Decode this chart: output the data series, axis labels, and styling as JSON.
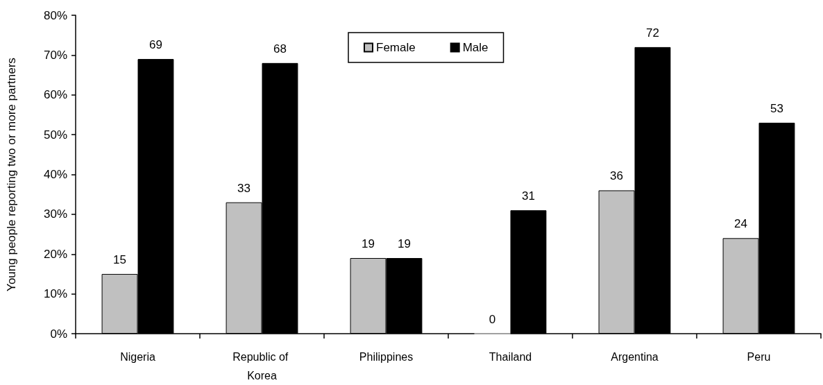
{
  "chart_data": {
    "type": "bar",
    "ylabel": "Young people reporting two or more partners",
    "categories": [
      "Nigeria",
      "Republic of Korea",
      "Philippines",
      "Thailand",
      "Argentina",
      "Peru"
    ],
    "series": [
      {
        "name": "Female",
        "color": "#c0c0c0",
        "values": [
          15,
          33,
          19,
          0,
          36,
          24
        ]
      },
      {
        "name": "Male",
        "color": "#000000",
        "values": [
          69,
          68,
          19,
          31,
          72,
          53
        ]
      }
    ],
    "ylim": [
      0,
      80
    ],
    "yticks": [
      {
        "value": 0,
        "label": "0%"
      },
      {
        "value": 10,
        "label": "10%"
      },
      {
        "value": 20,
        "label": "20%"
      },
      {
        "value": 30,
        "label": "30%"
      },
      {
        "value": 40,
        "label": "40%"
      },
      {
        "value": 50,
        "label": "50%"
      },
      {
        "value": 60,
        "label": "60%"
      },
      {
        "value": 70,
        "label": "70%"
      },
      {
        "value": 80,
        "label": "80%"
      }
    ],
    "data_labels": true,
    "grid": false,
    "legend": "top"
  }
}
